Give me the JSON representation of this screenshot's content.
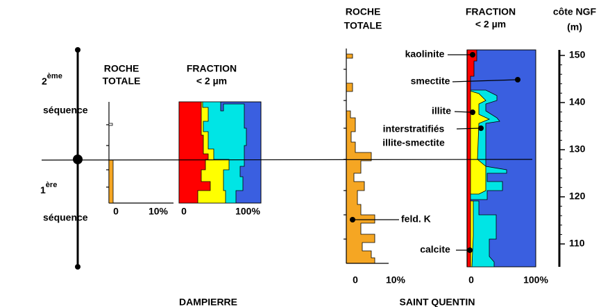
{
  "sequences": [
    {
      "number": "2",
      "suffix": "ème",
      "label": "séquence"
    },
    {
      "number": "1",
      "suffix": "ère",
      "label": "séquence"
    }
  ],
  "dampierre": {
    "name": "DAMPIERRE",
    "roche_totale": [
      "ROCHE",
      "TOTALE"
    ],
    "fraction": [
      "FRACTION",
      "< 2 µm"
    ],
    "roche_axis": [
      "0",
      "10%"
    ],
    "fraction_axis": [
      "0",
      "100%"
    ]
  },
  "saint_quentin": {
    "name": "SAINT QUENTIN",
    "roche_totale": [
      "ROCHE",
      "TOTALE"
    ],
    "fraction": [
      "FRACTION",
      "< 2 µm"
    ],
    "roche_axis": [
      "0",
      "10%"
    ],
    "fraction_axis": [
      "0",
      "100%"
    ],
    "minerals": [
      "kaolinite",
      "smectite",
      "illite",
      "interstratifiés",
      "illite-smectite",
      "feld. K",
      "calcite"
    ]
  },
  "depth_scale": {
    "title": [
      "côte NGF",
      "(m)"
    ],
    "ticks": [
      150,
      140,
      130,
      120,
      110
    ]
  }
}
